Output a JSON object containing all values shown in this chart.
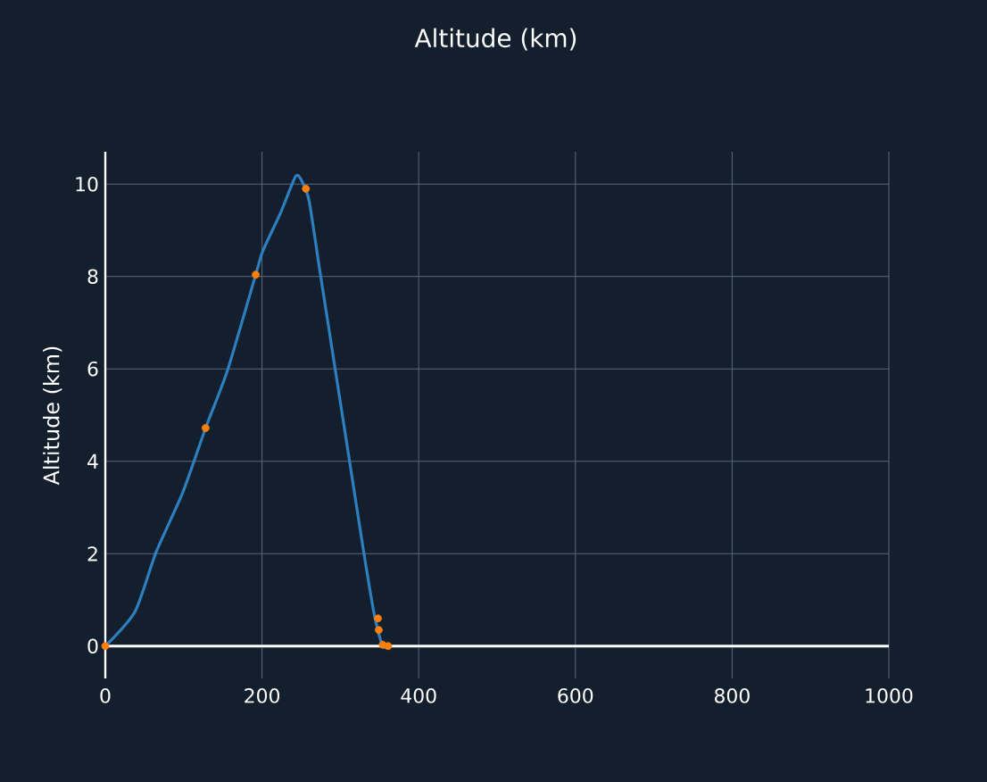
{
  "chart_data": {
    "type": "line",
    "title": "Altitude (km)",
    "ylabel": "Altitude (km)",
    "xlim": [
      0,
      1000
    ],
    "ylim": [
      -0.7,
      10.7
    ],
    "xticks": [
      0,
      200,
      400,
      600,
      800,
      1000
    ],
    "yticks": [
      0,
      2,
      4,
      6,
      8,
      10
    ],
    "grid": true,
    "series": [
      {
        "color": "#2e7fbf",
        "marker": "none",
        "x": [
          0,
          38,
          65,
          99,
          128,
          156,
          192,
          201,
          224,
          243,
          251,
          260,
          274,
          293,
          312,
          331,
          344,
          354,
          362
        ],
        "values": [
          0,
          0.75,
          2.04,
          3.33,
          4.72,
          5.97,
          8.04,
          8.55,
          9.39,
          10.17,
          10.06,
          9.65,
          8.1,
          6.04,
          3.97,
          1.91,
          0.62,
          0,
          0
        ]
      },
      {
        "type": "scatter",
        "color": "#ff7f0e",
        "marker": "circle",
        "x": [
          0,
          128,
          192,
          256,
          348,
          349,
          354,
          361
        ],
        "values": [
          0,
          4.72,
          8.04,
          9.9,
          0.6,
          0.35,
          0.03,
          0
        ]
      }
    ]
  }
}
